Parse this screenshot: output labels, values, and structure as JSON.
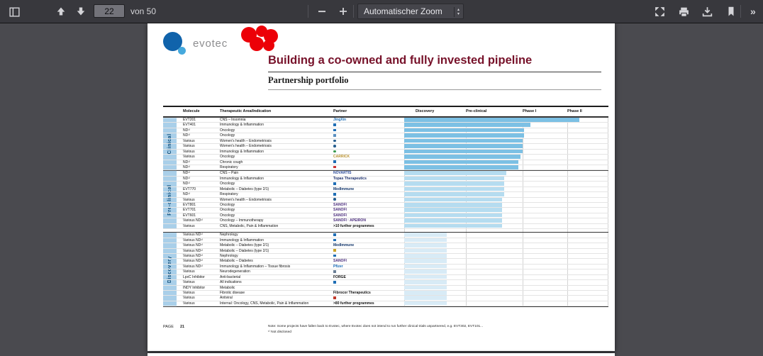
{
  "toolbar": {
    "page_input": "22",
    "page_count_label": "von 50",
    "zoom_select_label": "Automatischer Zoom",
    "more_tools_label": "»",
    "icons": [
      "sidebar-toggle-icon",
      "page-up-icon",
      "page-down-icon",
      "zoom-out-icon",
      "zoom-in-icon",
      "presentation-mode-icon",
      "print-icon",
      "download-icon",
      "bookmark-icon",
      "more-tools-icon"
    ]
  },
  "page": {
    "logo_text": "evotec",
    "title": "Building a co-owned and fully invested pipeline",
    "subtitle": "Partnership portfolio",
    "footer": {
      "page_label": "PAGE",
      "page_number": "21",
      "note": "Note: Some projects have fallen back to Evotec, where Evotec does not intend to run further clinical trials unpartnered, e.g. EVT302, EVT101...",
      "footnote": "¹⁾ Not disclosed"
    },
    "chart_data": {
      "type": "table",
      "columns": [
        "Molecule",
        "Therapeutic Area/Indication",
        "Partner",
        "Discovery",
        "Pre-clinical",
        "Phase I",
        "Phase II"
      ],
      "phase_axis": [
        "Discovery",
        "Pre-clinical",
        "Phase I",
        "Phase II"
      ],
      "bar_colors": {
        "clinical": "#7cc0e4",
        "preclinical": "#b5dcf0",
        "discovery": "#d8ebf6"
      },
      "groups": [
        {
          "name": "Clinical",
          "key": "clinical",
          "rows": [
            {
              "molecule": "EVT201",
              "indication": "CNS – Insomnia",
              "partner": {
                "label": "JingXin",
                "color": "#1f6eb5"
              },
              "bar": 86
            },
            {
              "molecule": "EVT401",
              "indication": "Immunology & Inflammation",
              "partner": {
                "label": "",
                "mark": "#1f6eb5"
              },
              "bar": 62
            },
            {
              "molecule": "ND¹⁾",
              "indication": "Oncology",
              "partner": {
                "label": "",
                "mark": "#1f6eb5"
              },
              "bar": 59
            },
            {
              "molecule": "ND¹⁾",
              "indication": "Oncology",
              "partner": {
                "label": "",
                "mark": "#5a8fc0"
              },
              "bar": 59
            },
            {
              "molecule": "Various",
              "indication": "Women's health – Endometriosis",
              "partner": {
                "label": "",
                "mark": "#275e8e",
                "shape": "circle"
              },
              "bar": 58
            },
            {
              "molecule": "Various",
              "indication": "Women's health – Endometriosis",
              "partner": {
                "label": "",
                "mark": "#275e8e",
                "shape": "circle"
              },
              "bar": 58
            },
            {
              "molecule": "Various",
              "indication": "Immunology & Inflammation",
              "partner": {
                "label": "",
                "mark": "#3a9a4e",
                "shape": "circle"
              },
              "bar": 58
            },
            {
              "molecule": "Various",
              "indication": "Oncology",
              "partner": {
                "label": "CARRICK",
                "color": "#b8912f"
              },
              "bar": 57
            },
            {
              "molecule": "ND¹⁾",
              "indication": "Chronic cough",
              "partner": {
                "label": "",
                "mark": "#1f6eb5"
              },
              "bar": 56
            },
            {
              "molecule": "ND¹⁾",
              "indication": "Respiratory",
              "partner": {
                "label": "",
                "mark": "#cc3333"
              },
              "bar": 56
            }
          ]
        },
        {
          "name": "Pre-clinical",
          "key": "preclinical",
          "rows": [
            {
              "molecule": "ND¹⁾",
              "indication": "CNS – Pain",
              "partner": {
                "label": "NOVARTIS",
                "color": "#2b4b9b"
              },
              "bar": 50
            },
            {
              "molecule": "ND¹⁾",
              "indication": "Immunology & Inflammation",
              "partner": {
                "label": "Topas Therapeutics",
                "color": "#1a2d6b"
              },
              "bar": 49
            },
            {
              "molecule": "ND¹⁾",
              "indication": "Oncology",
              "partner": {
                "label": "",
                "mark": "#1f6eb5"
              },
              "bar": 49
            },
            {
              "molecule": "EVT770",
              "indication": "Metabolic – Diabetes (type 2/1)",
              "partner": {
                "label": "MedImmune",
                "color": "#13366b"
              },
              "bar": 49
            },
            {
              "molecule": "ND¹⁾",
              "indication": "Respiratory",
              "partner": {
                "label": "",
                "mark": "#1f6eb5"
              },
              "bar": 49
            },
            {
              "molecule": "Various",
              "indication": "Women's health – Endometriosis",
              "partner": {
                "label": "",
                "mark": "#275e8e",
                "shape": "circle"
              },
              "bar": 48
            },
            {
              "molecule": "EVT801",
              "indication": "Oncology",
              "partner": {
                "label": "SANOFI",
                "color": "#4a2c7c"
              },
              "bar": 48
            },
            {
              "molecule": "EVT701",
              "indication": "Oncology",
              "partner": {
                "label": "SANOFI",
                "color": "#4a2c7c"
              },
              "bar": 48
            },
            {
              "molecule": "EVT601",
              "indication": "Oncology",
              "partner": {
                "label": "SANOFI",
                "color": "#4a2c7c"
              },
              "bar": 48
            },
            {
              "molecule": "Various ND¹⁾",
              "indication": "Oncology – Immunotherapy",
              "partner": {
                "label": "SANOFI · APEIRON",
                "color": "#4a2c7c"
              },
              "bar": 48
            },
            {
              "molecule": "Various",
              "indication": "CNS, Metabolic, Pain & Inflammation",
              "partner": {
                "label": ">10 further programmes",
                "color": "#111111",
                "bold": true
              },
              "bar": 48
            }
          ]
        },
        {
          "name": "Discovery",
          "key": "discovery",
          "rows": [
            {
              "molecule": "Various ND¹⁾",
              "indication": "Nephrology",
              "partner": {
                "label": "",
                "mark": "#1f6eb5"
              },
              "bar": 21
            },
            {
              "molecule": "Various ND¹⁾",
              "indication": "Immunology & Inflammation",
              "partner": {
                "label": "",
                "mark": "#1f6eb5"
              },
              "bar": 21
            },
            {
              "molecule": "Various ND¹⁾",
              "indication": "Metabolic – Diabetes (type 2/1)",
              "partner": {
                "label": "MedImmune",
                "color": "#13366b"
              },
              "bar": 21
            },
            {
              "molecule": "Various ND¹⁾",
              "indication": "Metabolic – Diabetes (type 2/1)",
              "partner": {
                "label": "",
                "mark": "#c9a227"
              },
              "bar": 21
            },
            {
              "molecule": "Various ND¹⁾",
              "indication": "Nephrology",
              "partner": {
                "label": "",
                "mark": "#1f6eb5"
              },
              "bar": 21
            },
            {
              "molecule": "Various ND¹⁾",
              "indication": "Metabolic – Diabetes",
              "partner": {
                "label": "SANOFI",
                "color": "#4a2c7c"
              },
              "bar": 21
            },
            {
              "molecule": "Various ND¹⁾",
              "indication": "Immunology & Inflammation – Tissue fibrosis",
              "partner": {
                "label": "Pfizer",
                "color": "#1467b3"
              },
              "bar": 21
            },
            {
              "molecule": "Various",
              "indication": "Neurodegeneration",
              "partner": {
                "label": "",
                "mark": "#6a7f95"
              },
              "bar": 21
            },
            {
              "molecule": "LpxC Inhibitor",
              "indication": "Anti-bacterial",
              "partner": {
                "label": "FORGE",
                "color": "#111111",
                "bold": true
              },
              "bar": 21
            },
            {
              "molecule": "Various",
              "indication": "All indications",
              "partner": {
                "label": "",
                "mark": "#1f6eb5"
              },
              "bar": 21
            },
            {
              "molecule": "INDY Inhibitor",
              "indication": "Metabolic",
              "partner": {
                "label": ""
              },
              "bar": 21
            },
            {
              "molecule": "Various",
              "indication": "Fibrotic disease",
              "partner": {
                "label": "Fibrocor Therapeutics",
                "color": "#111111",
                "bold": true
              },
              "bar": 21
            },
            {
              "molecule": "Various",
              "indication": "Antiviral",
              "partner": {
                "label": "",
                "mark": "#c0392b"
              },
              "bar": 21
            },
            {
              "molecule": "Various",
              "indication": "Internal: Oncology, CNS, Metabolic, Pain & Inflammation",
              "partner": {
                "label": ">80 further programmes",
                "color": "#111111",
                "bold": true
              },
              "bar": 21
            }
          ]
        }
      ]
    }
  }
}
